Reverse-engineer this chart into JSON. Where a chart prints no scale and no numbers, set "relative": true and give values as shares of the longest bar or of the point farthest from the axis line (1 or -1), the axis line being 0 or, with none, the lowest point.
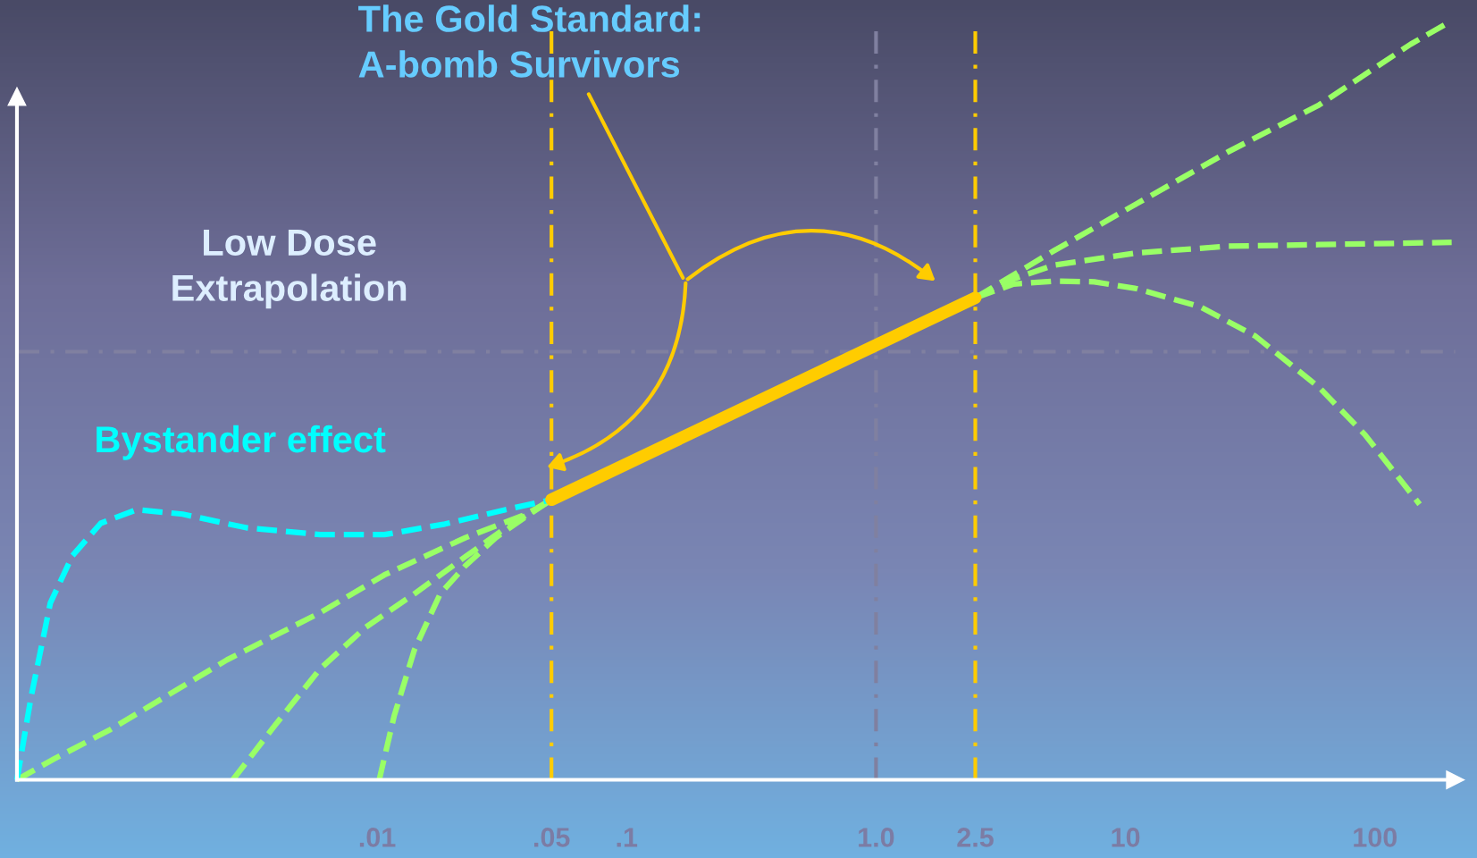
{
  "chart_data": {
    "type": "line",
    "relative": true,
    "log": "x",
    "grid": false,
    "legend": false,
    "xlim": [
      0.00036,
      210
    ],
    "xticks": [
      {
        "value": 0.01,
        "label": ".01"
      },
      {
        "value": 0.05,
        "label": ".05"
      },
      {
        "value": 0.1,
        "label": ".1"
      },
      {
        "value": 1,
        "label": "1.0"
      },
      {
        "value": 2.5,
        "label": "2.5"
      },
      {
        "value": 10,
        "label": "10"
      },
      {
        "value": 100,
        "label": "100"
      }
    ],
    "series": [
      {
        "color": "#99ff66",
        "line_style": "dashed",
        "x": [
          0.00036,
          0.00051,
          0.00085,
          0.0025,
          0.0059,
          0.0107,
          0.0226,
          0.0396,
          0.05,
          1,
          2.5,
          5.17,
          11.1,
          25.7,
          59.7,
          139,
          203
        ],
        "values": [
          0,
          0.028,
          0.066,
          0.158,
          0.22,
          0.27,
          0.319,
          0.35,
          0.369,
          null,
          0.635,
          0.697,
          0.759,
          0.827,
          0.889,
          0.969,
          1
        ]
      },
      {
        "color": "#99ff66",
        "line_style": "dashed",
        "x": [
          0.00264,
          0.0039,
          0.0059,
          0.009,
          0.0141,
          0.0226,
          0.0328,
          0.05
        ],
        "values": [
          0,
          0.072,
          0.146,
          0.201,
          0.245,
          0.294,
          0.332,
          0.369
        ]
      },
      {
        "color": "#99ff66",
        "line_style": "dashed",
        "x": [
          0.0102,
          0.0117,
          0.0141,
          0.0179,
          0.0226,
          0.0299,
          0.0396,
          0.05
        ],
        "values": [
          0,
          0.084,
          0.171,
          0.245,
          0.282,
          0.319,
          0.347,
          0.369
        ]
      },
      {
        "color": "#00ffff",
        "line_style": "dashed",
        "x": [
          0.00036,
          0.00041,
          0.00049,
          0.0006,
          0.00078,
          0.00109,
          0.00166,
          0.003,
          0.0059,
          0.0107,
          0.0187,
          0.0328,
          0.05
        ],
        "values": [
          0,
          0.109,
          0.233,
          0.295,
          0.338,
          0.356,
          0.35,
          0.332,
          0.323,
          0.323,
          0.337,
          0.356,
          0.369
        ]
      },
      {
        "color": "#99ff66",
        "line_style": "dashed",
        "x": [
          2.5,
          3.56,
          5.17,
          11.1,
          25.7,
          59.7,
          203
        ],
        "values": [
          0.635,
          0.66,
          0.678,
          0.694,
          0.703,
          0.705,
          0.708
        ]
      },
      {
        "color": "#99ff66",
        "line_style": "dashed",
        "x": [
          2.5,
          3.56,
          5.17,
          7.5,
          11.1,
          20,
          33,
          59.7,
          91,
          151
        ],
        "values": [
          0.635,
          0.653,
          0.657,
          0.656,
          0.647,
          0.623,
          0.585,
          0.517,
          0.455,
          0.363
        ]
      },
      {
        "color": "#ffcc00",
        "line_style": "solid",
        "x": [
          0.05,
          2.5
        ],
        "values": [
          0.369,
          0.635
        ]
      }
    ],
    "ref_lines": [
      {
        "axis": "x",
        "value": 0.05,
        "color": "#ffcc00",
        "line_style": "dashdot"
      },
      {
        "axis": "x",
        "value": 2.5,
        "color": "#ffcc00",
        "line_style": "dashdot"
      },
      {
        "axis": "x",
        "value": 1,
        "color": "#8080a0",
        "line_style": "dashdot"
      },
      {
        "axis": "y",
        "value": 0.564,
        "color": "#8080a0",
        "line_style": "dashdot"
      }
    ],
    "annotations": [
      "The Gold Standard:\nA-bomb Survivors",
      "Low Dose\nExtrapolation",
      "Bystander effect"
    ]
  }
}
